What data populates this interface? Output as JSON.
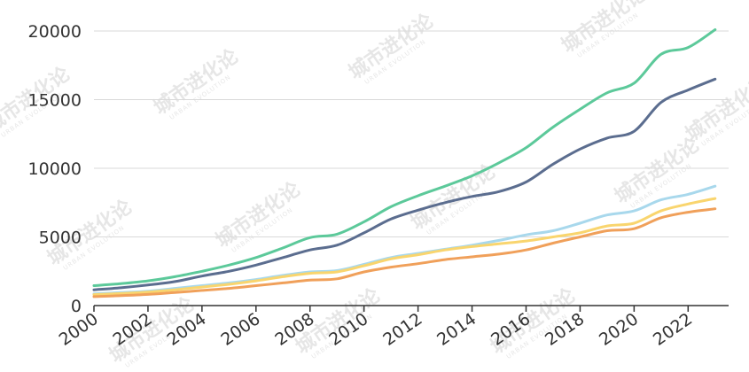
{
  "chart_data": {
    "type": "line",
    "title": "",
    "xlabel": "",
    "ylabel": "",
    "x": [
      2000,
      2001,
      2002,
      2003,
      2004,
      2005,
      2006,
      2007,
      2008,
      2009,
      2010,
      2011,
      2012,
      2013,
      2014,
      2015,
      2016,
      2017,
      2018,
      2019,
      2020,
      2021,
      2022,
      2023
    ],
    "xticks": [
      "2000",
      "2002",
      "2004",
      "2006",
      "2008",
      "2010",
      "2012",
      "2014",
      "2016",
      "2018",
      "2020",
      "2022"
    ],
    "yticks": [
      "0",
      "5000",
      "10000",
      "15000",
      "20000"
    ],
    "ylim": [
      0,
      20000
    ],
    "xlim": [
      2000,
      2023.5
    ],
    "grid": true,
    "legend": "none",
    "series": [
      {
        "color": "#5cc99a",
        "values": [
          1450,
          1600,
          1800,
          2100,
          2500,
          2950,
          3500,
          4200,
          4950,
          5200,
          6100,
          7200,
          8000,
          8700,
          9450,
          10400,
          11500,
          13000,
          14300,
          15500,
          16200,
          18300,
          18800,
          20100
        ]
      },
      {
        "color": "#5b6d8f",
        "values": [
          1150,
          1300,
          1500,
          1750,
          2150,
          2500,
          2950,
          3500,
          4050,
          4400,
          5300,
          6300,
          6950,
          7500,
          7950,
          8300,
          9000,
          10300,
          11400,
          12200,
          12700,
          14800,
          15700,
          16500
        ]
      },
      {
        "color": "#a8d8ec",
        "values": [
          850,
          950,
          1050,
          1250,
          1450,
          1650,
          1900,
          2200,
          2450,
          2550,
          3000,
          3500,
          3800,
          4100,
          4400,
          4750,
          5150,
          5450,
          6000,
          6600,
          6900,
          7700,
          8100,
          8700
        ]
      },
      {
        "color": "#f9d56e",
        "values": [
          800,
          880,
          980,
          1150,
          1350,
          1550,
          1800,
          2100,
          2350,
          2450,
          2900,
          3400,
          3700,
          4050,
          4300,
          4500,
          4700,
          5000,
          5300,
          5800,
          6000,
          6900,
          7400,
          7800
        ]
      },
      {
        "color": "#f0a05a",
        "values": [
          650,
          720,
          810,
          950,
          1100,
          1250,
          1450,
          1650,
          1850,
          1950,
          2450,
          2800,
          3050,
          3350,
          3550,
          3750,
          4050,
          4550,
          5000,
          5450,
          5600,
          6400,
          6800,
          7050
        ]
      }
    ],
    "watermark": {
      "main": "城市进化论",
      "sub": "URBAN EVOLUTION"
    }
  }
}
